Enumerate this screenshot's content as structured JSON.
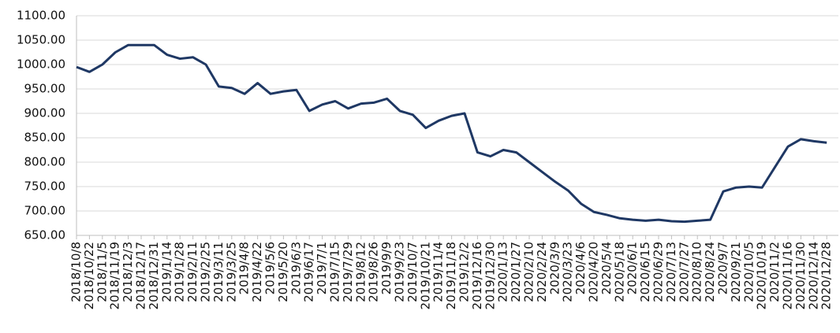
{
  "chart_data": {
    "type": "line",
    "categories": [
      "2018/10/8",
      "2018/10/22",
      "2018/11/5",
      "2018/11/19",
      "2018/12/3",
      "2018/12/17",
      "2018/12/31",
      "2019/1/14",
      "2019/1/28",
      "2019/2/11",
      "2019/2/25",
      "2019/3/11",
      "2019/3/25",
      "2019/4/8",
      "2019/4/22",
      "2019/5/6",
      "2019/5/20",
      "2019/6/3",
      "2019/6/17",
      "2019/7/1",
      "2019/7/15",
      "2019/7/29",
      "2019/8/12",
      "2019/8/26",
      "2019/9/9",
      "2019/9/23",
      "2019/10/7",
      "2019/10/21",
      "2019/11/4",
      "2019/11/18",
      "2019/12/2",
      "2019/12/16",
      "2019/12/30",
      "2020/1/13",
      "2020/1/27",
      "2020/2/10",
      "2020/2/24",
      "2020/3/9",
      "2020/3/23",
      "2020/4/6",
      "2020/4/20",
      "2020/5/4",
      "2020/5/18",
      "2020/6/1",
      "2020/6/15",
      "2020/6/29",
      "2020/7/13",
      "2020/7/27",
      "2020/8/10",
      "2020/8/24",
      "2020/9/7",
      "2020/9/21",
      "2020/10/5",
      "2020/10/19",
      "2020/11/2",
      "2020/11/16",
      "2020/11/30",
      "2020/12/14",
      "2020/12/28"
    ],
    "series": [
      {
        "color": "#1f3864",
        "values": [
          995,
          985,
          1000,
          1025,
          1040,
          1040,
          1040,
          1020,
          1012,
          1015,
          1000,
          955,
          952,
          940,
          962,
          940,
          945,
          948,
          905,
          918,
          925,
          910,
          920,
          922,
          930,
          905,
          897,
          870,
          885,
          895,
          900,
          820,
          812,
          825,
          820,
          800,
          780,
          760,
          742,
          715,
          698,
          692,
          685,
          682,
          680,
          682,
          679,
          678,
          680,
          682,
          740,
          748,
          750,
          748,
          790,
          832,
          847,
          843,
          840
        ]
      }
    ],
    "ylim": [
      650,
      1100
    ],
    "yticks": [
      {
        "value": 650,
        "label": "650.00"
      },
      {
        "value": 700,
        "label": "700.00"
      },
      {
        "value": 750,
        "label": "750.00"
      },
      {
        "value": 800,
        "label": "800.00"
      },
      {
        "value": 850,
        "label": "850.00"
      },
      {
        "value": 900,
        "label": "900.00"
      },
      {
        "value": 950,
        "label": "950.00"
      },
      {
        "value": 1000,
        "label": "1000.00"
      },
      {
        "value": 1050,
        "label": "1050.00"
      },
      {
        "value": 1100,
        "label": "1100.00"
      }
    ],
    "grid": true
  }
}
